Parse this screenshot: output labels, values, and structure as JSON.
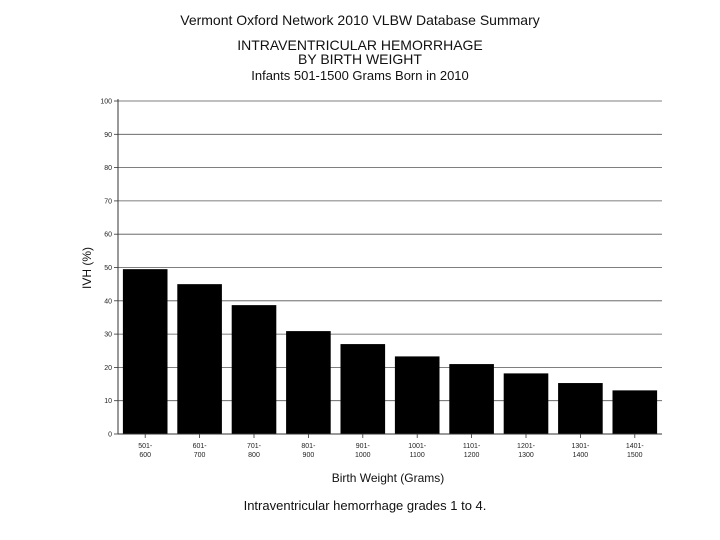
{
  "header": "Vermont Oxford Network 2010 VLBW Database Summary",
  "caption": "Intraventricular hemorrhage grades 1 to 4.",
  "chart_data": {
    "type": "bar",
    "title_lines": [
      "INTRAVENTRICULAR HEMORRHAGE",
      "BY BIRTH WEIGHT"
    ],
    "subtitle": "Infants 501-1500 Grams Born in 2010",
    "xlabel": "Birth Weight (Grams)",
    "ylabel": "IVH (%)",
    "ylim": [
      0,
      100
    ],
    "yticks": [
      0,
      10,
      20,
      30,
      40,
      50,
      60,
      70,
      80,
      90,
      100
    ],
    "grid": true,
    "categories": [
      [
        "501-",
        "600"
      ],
      [
        "601-",
        "700"
      ],
      [
        "701-",
        "800"
      ],
      [
        "801-",
        "900"
      ],
      [
        "901-",
        "1000"
      ],
      [
        "1001-",
        "1100"
      ],
      [
        "1101-",
        "1200"
      ],
      [
        "1201-",
        "1300"
      ],
      [
        "1301-",
        "1400"
      ],
      [
        "1401-",
        "1500"
      ]
    ],
    "values": [
      49.5,
      45,
      38.7,
      30.9,
      27,
      23.3,
      21,
      18.2,
      15.3,
      13.1
    ],
    "bar_color": "#000000"
  }
}
